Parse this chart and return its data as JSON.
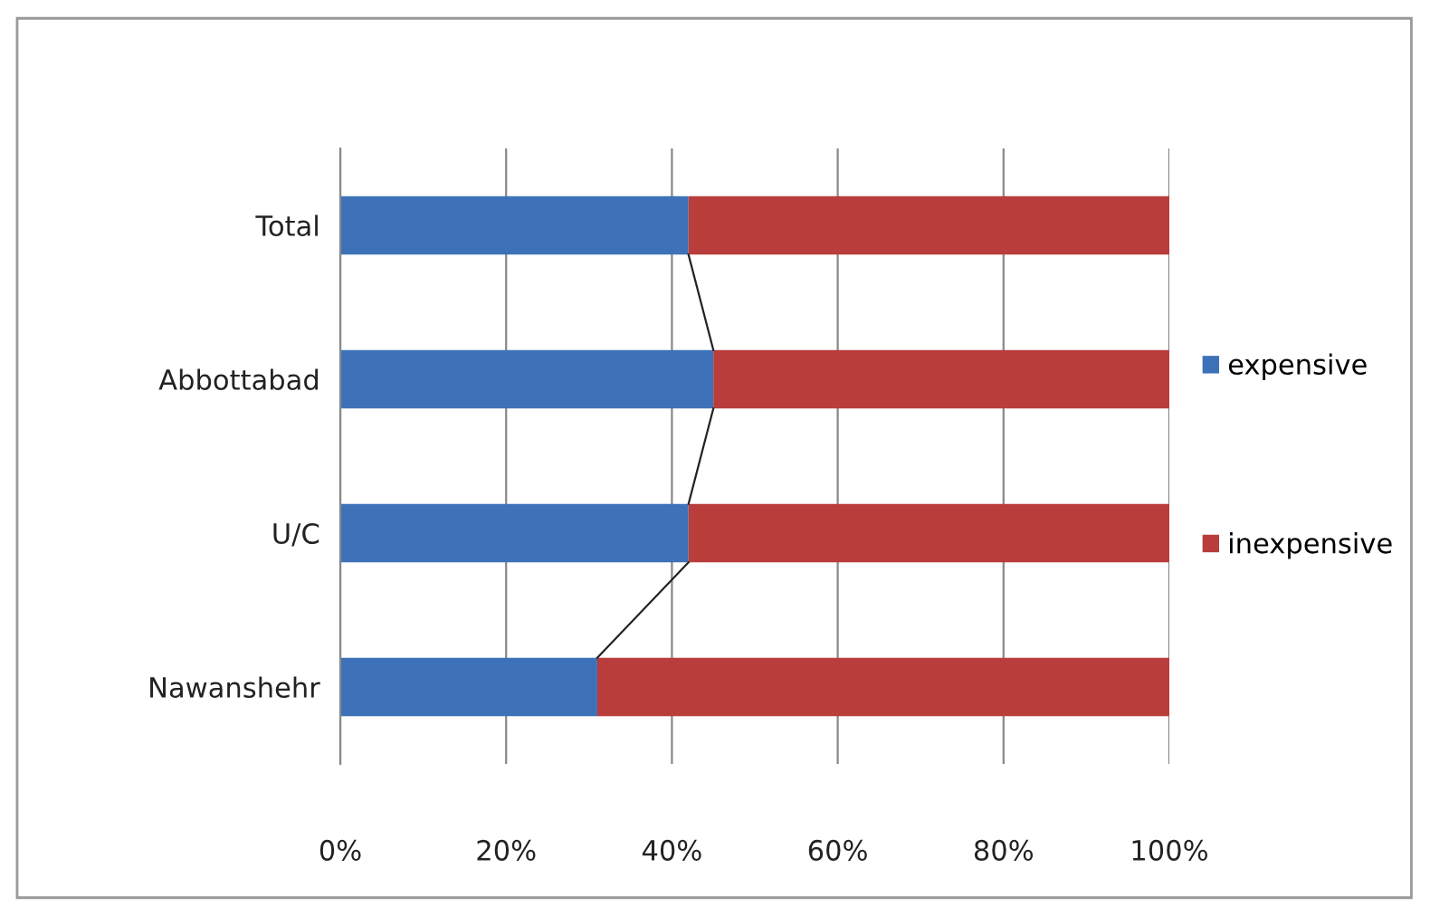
{
  "chart_data": {
    "type": "bar",
    "orientation": "horizontal",
    "stacked": true,
    "categories": [
      "Total",
      "Abbottabad",
      "U/C",
      "Nawanshehr"
    ],
    "series": [
      {
        "name": "expensive",
        "color": "#3d72b8",
        "values": [
          42,
          45,
          42,
          31
        ]
      },
      {
        "name": "inexpensive",
        "color": "#b83d3b",
        "values": [
          58,
          55,
          58,
          69
        ]
      }
    ],
    "xlim": [
      0,
      100
    ],
    "xticks": [
      {
        "value": 0,
        "label": "0%"
      },
      {
        "value": 20,
        "label": "20%"
      },
      {
        "value": 40,
        "label": "40%"
      },
      {
        "value": 60,
        "label": "60%"
      },
      {
        "value": 80,
        "label": "80%"
      },
      {
        "value": 100,
        "label": "100%"
      }
    ],
    "grid": "x",
    "legend": "right"
  }
}
